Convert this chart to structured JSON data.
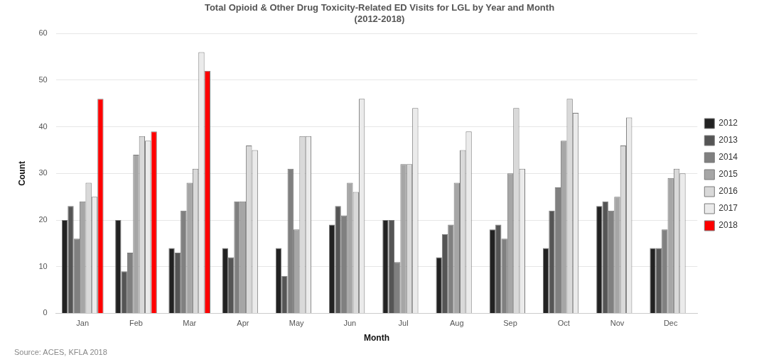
{
  "chart_data": {
    "type": "bar",
    "title": "Total Opioid & Other Drug Toxicity-Related ED Visits for LGL by Year and Month\n(2012-2018)",
    "xlabel": "Month",
    "ylabel": "Count",
    "categories": [
      "Jan",
      "Feb",
      "Mar",
      "Apr",
      "May",
      "Jun",
      "Jul",
      "Aug",
      "Sep",
      "Oct",
      "Nov",
      "Dec"
    ],
    "series": [
      {
        "name": "2012",
        "color": "#222222",
        "values": [
          20,
          20,
          14,
          14,
          14,
          19,
          20,
          12,
          18,
          14,
          23,
          14
        ]
      },
      {
        "name": "2013",
        "color": "#555555",
        "values": [
          23,
          9,
          13,
          12,
          8,
          23,
          20,
          17,
          19,
          22,
          24,
          14
        ]
      },
      {
        "name": "2014",
        "color": "#808080",
        "values": [
          16,
          13,
          22,
          24,
          31,
          21,
          11,
          19,
          16,
          27,
          22,
          18
        ]
      },
      {
        "name": "2015",
        "color": "#a6a6a6",
        "values": [
          24,
          34,
          28,
          24,
          18,
          28,
          32,
          28,
          30,
          37,
          25,
          29
        ]
      },
      {
        "name": "2016",
        "color": "#d9d9d9",
        "values": [
          28,
          38,
          31,
          36,
          38,
          26,
          32,
          35,
          44,
          46,
          36,
          31
        ]
      },
      {
        "name": "2017",
        "color": "#ebebeb",
        "values": [
          25,
          37,
          56,
          35,
          38,
          46,
          44,
          39,
          31,
          43,
          42,
          30
        ]
      },
      {
        "name": "2018",
        "color": "#ff0000",
        "values": [
          46,
          39,
          52,
          null,
          null,
          null,
          null,
          null,
          null,
          null,
          null,
          null
        ]
      }
    ],
    "ylim": [
      0,
      60
    ],
    "yticks": [
      0,
      10,
      20,
      30,
      40,
      50,
      60
    ],
    "grid": "y",
    "legend": "right",
    "annotations": [
      "Source: ACES, KFLA 2018"
    ]
  }
}
